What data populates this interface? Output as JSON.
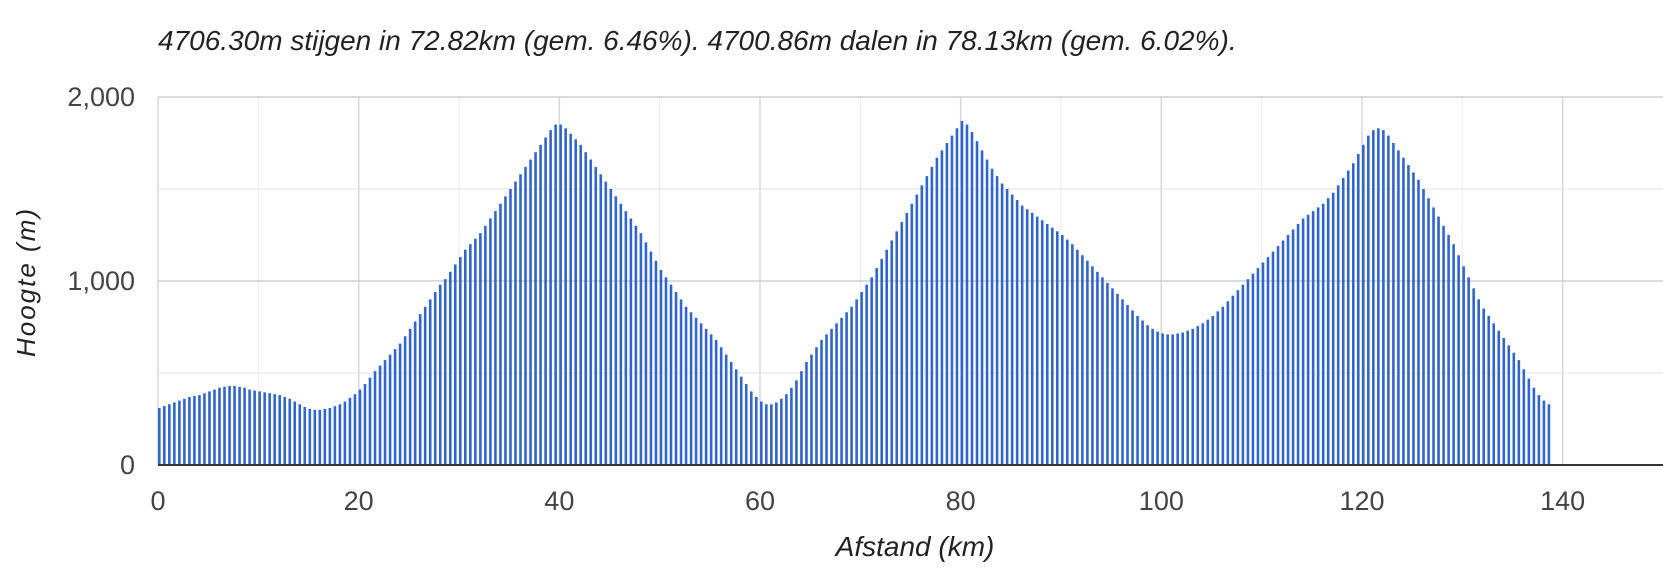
{
  "chart_data": {
    "type": "bar",
    "title": "4706.30m stijgen in 72.82km (gem. 6.46%). 4700.86m dalen in 78.13km (gem. 6.02%).",
    "xlabel": "Afstand (km)",
    "ylabel": "Hoogte (m)",
    "xlim": [
      0,
      150
    ],
    "ylim": [
      0,
      2000
    ],
    "x_ticks": [
      {
        "value": 0,
        "label": "0"
      },
      {
        "value": 20,
        "label": "20"
      },
      {
        "value": 40,
        "label": "40"
      },
      {
        "value": 60,
        "label": "60"
      },
      {
        "value": 80,
        "label": "80"
      },
      {
        "value": 100,
        "label": "100"
      },
      {
        "value": 120,
        "label": "120"
      },
      {
        "value": 140,
        "label": "140"
      }
    ],
    "y_ticks": [
      {
        "value": 0,
        "label": "0"
      },
      {
        "value": 1000,
        "label": "1,000"
      },
      {
        "value": 2000,
        "label": "2,000"
      }
    ],
    "y_minor_gridlines": [
      500,
      1500
    ],
    "grid": true,
    "bar_color": "#3366cc",
    "x_start": 0,
    "x_step": 0.5,
    "values": [
      310,
      320,
      330,
      340,
      350,
      360,
      370,
      375,
      380,
      390,
      400,
      410,
      420,
      425,
      430,
      430,
      425,
      420,
      410,
      405,
      400,
      395,
      390,
      385,
      380,
      370,
      360,
      345,
      330,
      315,
      305,
      300,
      300,
      305,
      310,
      320,
      330,
      345,
      365,
      385,
      410,
      440,
      475,
      510,
      540,
      570,
      600,
      630,
      660,
      700,
      740,
      780,
      820,
      860,
      900,
      940,
      980,
      1010,
      1050,
      1090,
      1130,
      1170,
      1200,
      1230,
      1260,
      1300,
      1340,
      1380,
      1420,
      1460,
      1500,
      1540,
      1580,
      1620,
      1660,
      1700,
      1740,
      1780,
      1820,
      1850,
      1850,
      1830,
      1800,
      1770,
      1740,
      1700,
      1660,
      1620,
      1580,
      1540,
      1500,
      1460,
      1420,
      1380,
      1340,
      1300,
      1260,
      1210,
      1160,
      1110,
      1060,
      1020,
      980,
      940,
      900,
      860,
      830,
      800,
      770,
      740,
      710,
      680,
      640,
      600,
      560,
      520,
      480,
      440,
      400,
      370,
      345,
      330,
      330,
      340,
      360,
      385,
      420,
      460,
      510,
      560,
      600,
      640,
      680,
      710,
      740,
      770,
      800,
      830,
      860,
      900,
      940,
      980,
      1020,
      1070,
      1120,
      1170,
      1220,
      1270,
      1320,
      1370,
      1420,
      1470,
      1520,
      1570,
      1620,
      1670,
      1710,
      1750,
      1790,
      1830,
      1870,
      1850,
      1810,
      1760,
      1710,
      1660,
      1610,
      1570,
      1530,
      1500,
      1470,
      1440,
      1410,
      1390,
      1370,
      1350,
      1330,
      1310,
      1290,
      1270,
      1250,
      1225,
      1200,
      1170,
      1140,
      1110,
      1080,
      1050,
      1020,
      990,
      960,
      930,
      900,
      870,
      840,
      810,
      785,
      760,
      740,
      725,
      715,
      710,
      710,
      715,
      720,
      730,
      740,
      755,
      770,
      790,
      810,
      835,
      860,
      890,
      920,
      950,
      980,
      1010,
      1040,
      1070,
      1100,
      1130,
      1160,
      1190,
      1220,
      1250,
      1280,
      1310,
      1340,
      1360,
      1380,
      1400,
      1420,
      1450,
      1480,
      1520,
      1560,
      1600,
      1640,
      1690,
      1740,
      1790,
      1820,
      1830,
      1820,
      1790,
      1750,
      1710,
      1670,
      1630,
      1590,
      1550,
      1500,
      1450,
      1400,
      1350,
      1300,
      1250,
      1200,
      1140,
      1080,
      1020,
      960,
      900,
      850,
      810,
      770,
      730,
      690,
      650,
      610,
      570,
      520,
      470,
      420,
      380,
      350,
      330
    ]
  }
}
